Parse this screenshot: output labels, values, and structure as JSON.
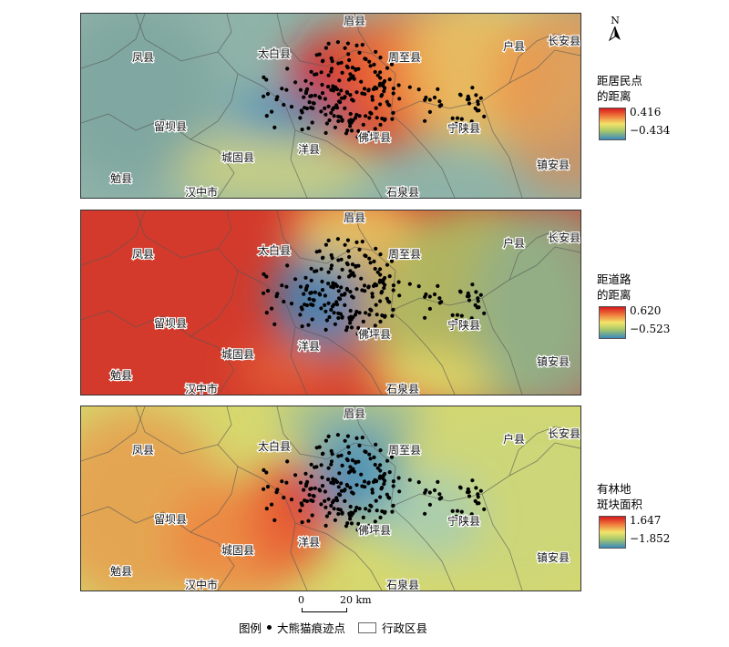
{
  "north_label": "N",
  "counties": [
    "眉县",
    "凤县",
    "太白县",
    "周至县",
    "户县",
    "长安县",
    "留坝县",
    "城固县",
    "洋县",
    "佛坪县",
    "宁陕县",
    "镇安县",
    "勉县",
    "汉中市",
    "石泉县"
  ],
  "panels": [
    {
      "legend_title": "距居民点\n的距离",
      "legend_high": "0.416",
      "legend_low": "−0.434",
      "surface": "residential"
    },
    {
      "legend_title": "距道路\n的距离",
      "legend_high": "0.620",
      "legend_low": "−0.523",
      "surface": "road"
    },
    {
      "legend_title": "有林地\n斑块面积",
      "legend_high": "1.647",
      "legend_low": "−1.852",
      "surface": "forest"
    }
  ],
  "scale": {
    "start": "0",
    "end": "20 km"
  },
  "map_legend": {
    "title": "图例",
    "points_label": "大熊猫痕迹点",
    "polygon_label": "行政区县"
  },
  "colors": {
    "high": "#d7191c",
    "mid_high": "#f07c3d",
    "mid": "#f2e36a",
    "mid_low": "#a9c96a",
    "low": "#3a89bd"
  }
}
